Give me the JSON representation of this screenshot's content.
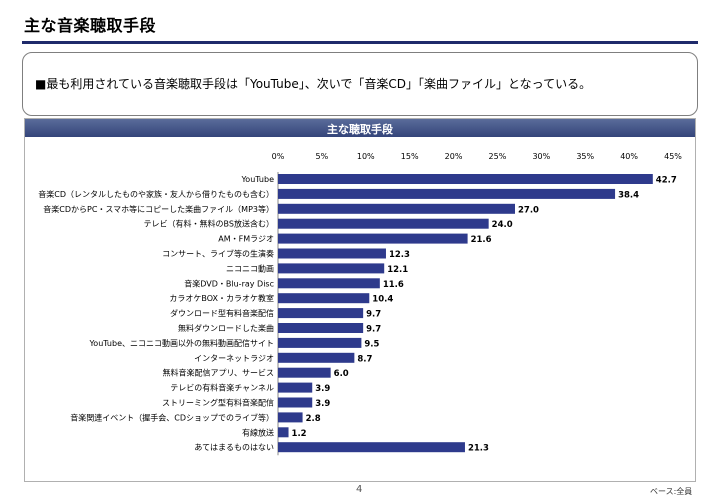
{
  "page": {
    "title": "主な音楽聴取手段",
    "summary": "■最も利用されている音楽聴取手段は「YouTube」、次いで「音楽CD」「楽曲ファイル」となっている。",
    "page_number": "4",
    "base_note": "ベース:全員"
  },
  "colors": {
    "bar": "#2e3a8c",
    "header": "#3f4f86",
    "rule": "#1f2a6b"
  },
  "chart_data": {
    "type": "bar",
    "orientation": "horizontal",
    "title": "主な聴取手段",
    "xlim": [
      0,
      45
    ],
    "ticks": [
      "0%",
      "5%",
      "10%",
      "15%",
      "20%",
      "25%",
      "30%",
      "35%",
      "40%",
      "45%"
    ],
    "tick_values": [
      0,
      5,
      10,
      15,
      20,
      25,
      30,
      35,
      40,
      45
    ],
    "grid": false,
    "categories": [
      "YouTube",
      "音楽CD（レンタルしたものや家族・友人から借りたものも含む）",
      "音楽CDからPC・スマホ等にコピーした楽曲ファイル（MP3等）",
      "テレビ（有料・無料のBS放送含む）",
      "AM・FMラジオ",
      "コンサート、ライブ等の生演奏",
      "ニコニコ動画",
      "音楽DVD・Blu-ray Disc",
      "カラオケBOX・カラオケ教室",
      "ダウンロード型有料音楽配信",
      "無料ダウンロードした楽曲",
      "YouTube、ニコニコ動画以外の無料動画配信サイト",
      "インターネットラジオ",
      "無料音楽配信アプリ、サービス",
      "テレビの有料音楽チャンネル",
      "ストリーミング型有料音楽配信",
      "音楽関連イベント（握手会、CDショップでのライブ等）",
      "有線放送",
      "あてはまるものはない"
    ],
    "values": [
      42.7,
      38.4,
      27.0,
      24.0,
      21.6,
      12.3,
      12.1,
      11.6,
      10.4,
      9.7,
      9.7,
      9.5,
      8.7,
      6.0,
      3.9,
      3.9,
      2.8,
      1.2,
      21.3
    ],
    "labels": [
      "42.7",
      "38.4",
      "27.0",
      "24.0",
      "21.6",
      "12.3",
      "12.1",
      "11.6",
      "10.4",
      "9.7",
      "9.7",
      "9.5",
      "8.7",
      "6.0",
      "3.9",
      "3.9",
      "2.8",
      "1.2",
      "21.3"
    ]
  }
}
